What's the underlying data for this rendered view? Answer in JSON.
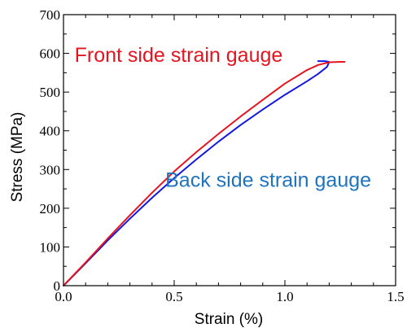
{
  "chart_data": {
    "type": "line",
    "xlabel": "Strain (%)",
    "ylabel": "Stress (MPa)",
    "xlim": [
      0,
      1.5
    ],
    "ylim": [
      0,
      700
    ],
    "x_ticks": [
      0,
      0.5,
      1.0,
      1.5
    ],
    "x_tick_labels": [
      "0.0",
      "0.5",
      "1.0",
      "1.5"
    ],
    "y_ticks": [
      0,
      100,
      200,
      300,
      400,
      500,
      600,
      700
    ],
    "y_tick_labels": [
      "0",
      "100",
      "200",
      "300",
      "400",
      "500",
      "600",
      "700"
    ],
    "grid": false,
    "series": [
      {
        "name": "Front side strain gauge",
        "color": "#e5141f",
        "points": [
          [
            0,
            0
          ],
          [
            0.1,
            60
          ],
          [
            0.2,
            122
          ],
          [
            0.3,
            182
          ],
          [
            0.4,
            240
          ],
          [
            0.5,
            295
          ],
          [
            0.6,
            345
          ],
          [
            0.7,
            392
          ],
          [
            0.8,
            437
          ],
          [
            0.9,
            480
          ],
          [
            1.0,
            522
          ],
          [
            1.1,
            557
          ],
          [
            1.15,
            570
          ],
          [
            1.2,
            577
          ],
          [
            1.25,
            578
          ],
          [
            1.27,
            578
          ]
        ]
      },
      {
        "name": "Back side strain gauge",
        "color": "#1418e0",
        "points": [
          [
            0,
            0
          ],
          [
            0.1,
            58
          ],
          [
            0.2,
            117
          ],
          [
            0.3,
            173
          ],
          [
            0.4,
            227
          ],
          [
            0.5,
            278
          ],
          [
            0.6,
            326
          ],
          [
            0.7,
            372
          ],
          [
            0.8,
            415
          ],
          [
            0.9,
            455
          ],
          [
            1.0,
            493
          ],
          [
            1.1,
            528
          ],
          [
            1.15,
            547
          ],
          [
            1.19,
            565
          ],
          [
            1.2,
            578
          ],
          [
            1.18,
            580
          ],
          [
            1.15,
            580
          ]
        ]
      }
    ],
    "annotations": [
      {
        "text": "Front side strain gauge",
        "color": "#e5141f",
        "x": 0.05,
        "y": 578
      },
      {
        "text": "Back side strain gauge",
        "color": "#1f73bd",
        "x": 0.46,
        "y": 255
      }
    ]
  }
}
